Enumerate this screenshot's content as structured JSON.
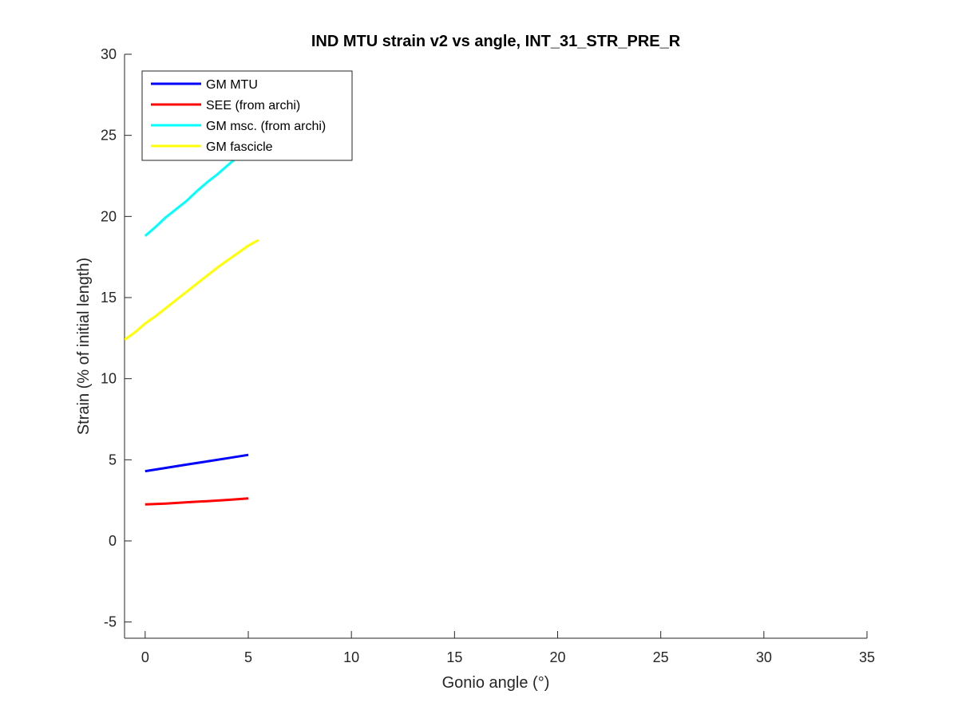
{
  "chart_data": {
    "type": "line",
    "title": "IND MTU strain v2 vs angle, INT_31_STR_PRE_R",
    "xlabel": "Gonio angle (°)",
    "ylabel": "Strain (% of initial length)",
    "xlim": [
      -1,
      35
    ],
    "ylim": [
      -6,
      30
    ],
    "xticks": [
      0,
      5,
      10,
      15,
      20,
      25,
      30,
      35
    ],
    "yticks": [
      -5,
      0,
      5,
      10,
      15,
      20,
      25,
      30
    ],
    "grid": false,
    "legend_position": "top-left",
    "series": [
      {
        "name": "GM MTU",
        "color": "#0000ff",
        "x": [
          0,
          1,
          2,
          3,
          4,
          5
        ],
        "y": [
          4.3,
          4.5,
          4.7,
          4.9,
          5.1,
          5.3
        ]
      },
      {
        "name": "SEE (from archi)",
        "color": "#ff0000",
        "x": [
          0,
          1,
          2,
          3,
          4,
          5
        ],
        "y": [
          2.25,
          2.3,
          2.38,
          2.45,
          2.53,
          2.62
        ]
      },
      {
        "name": "GM msc. (from archi)",
        "color": "#00ffff",
        "x": [
          0,
          0.5,
          1,
          1.5,
          2,
          2.5,
          3,
          3.5,
          4,
          4.5
        ],
        "y": [
          18.8,
          19.35,
          19.95,
          20.45,
          20.95,
          21.55,
          22.1,
          22.6,
          23.15,
          23.7
        ]
      },
      {
        "name": "GM fascicle",
        "color": "#ffff00",
        "x": [
          -1,
          -0.5,
          0,
          0.5,
          1,
          1.5,
          2,
          2.5,
          3,
          3.5,
          4,
          4.5,
          5,
          5.5
        ],
        "y": [
          12.4,
          12.85,
          13.4,
          13.85,
          14.35,
          14.85,
          15.35,
          15.85,
          16.35,
          16.85,
          17.3,
          17.75,
          18.2,
          18.55
        ]
      }
    ]
  }
}
